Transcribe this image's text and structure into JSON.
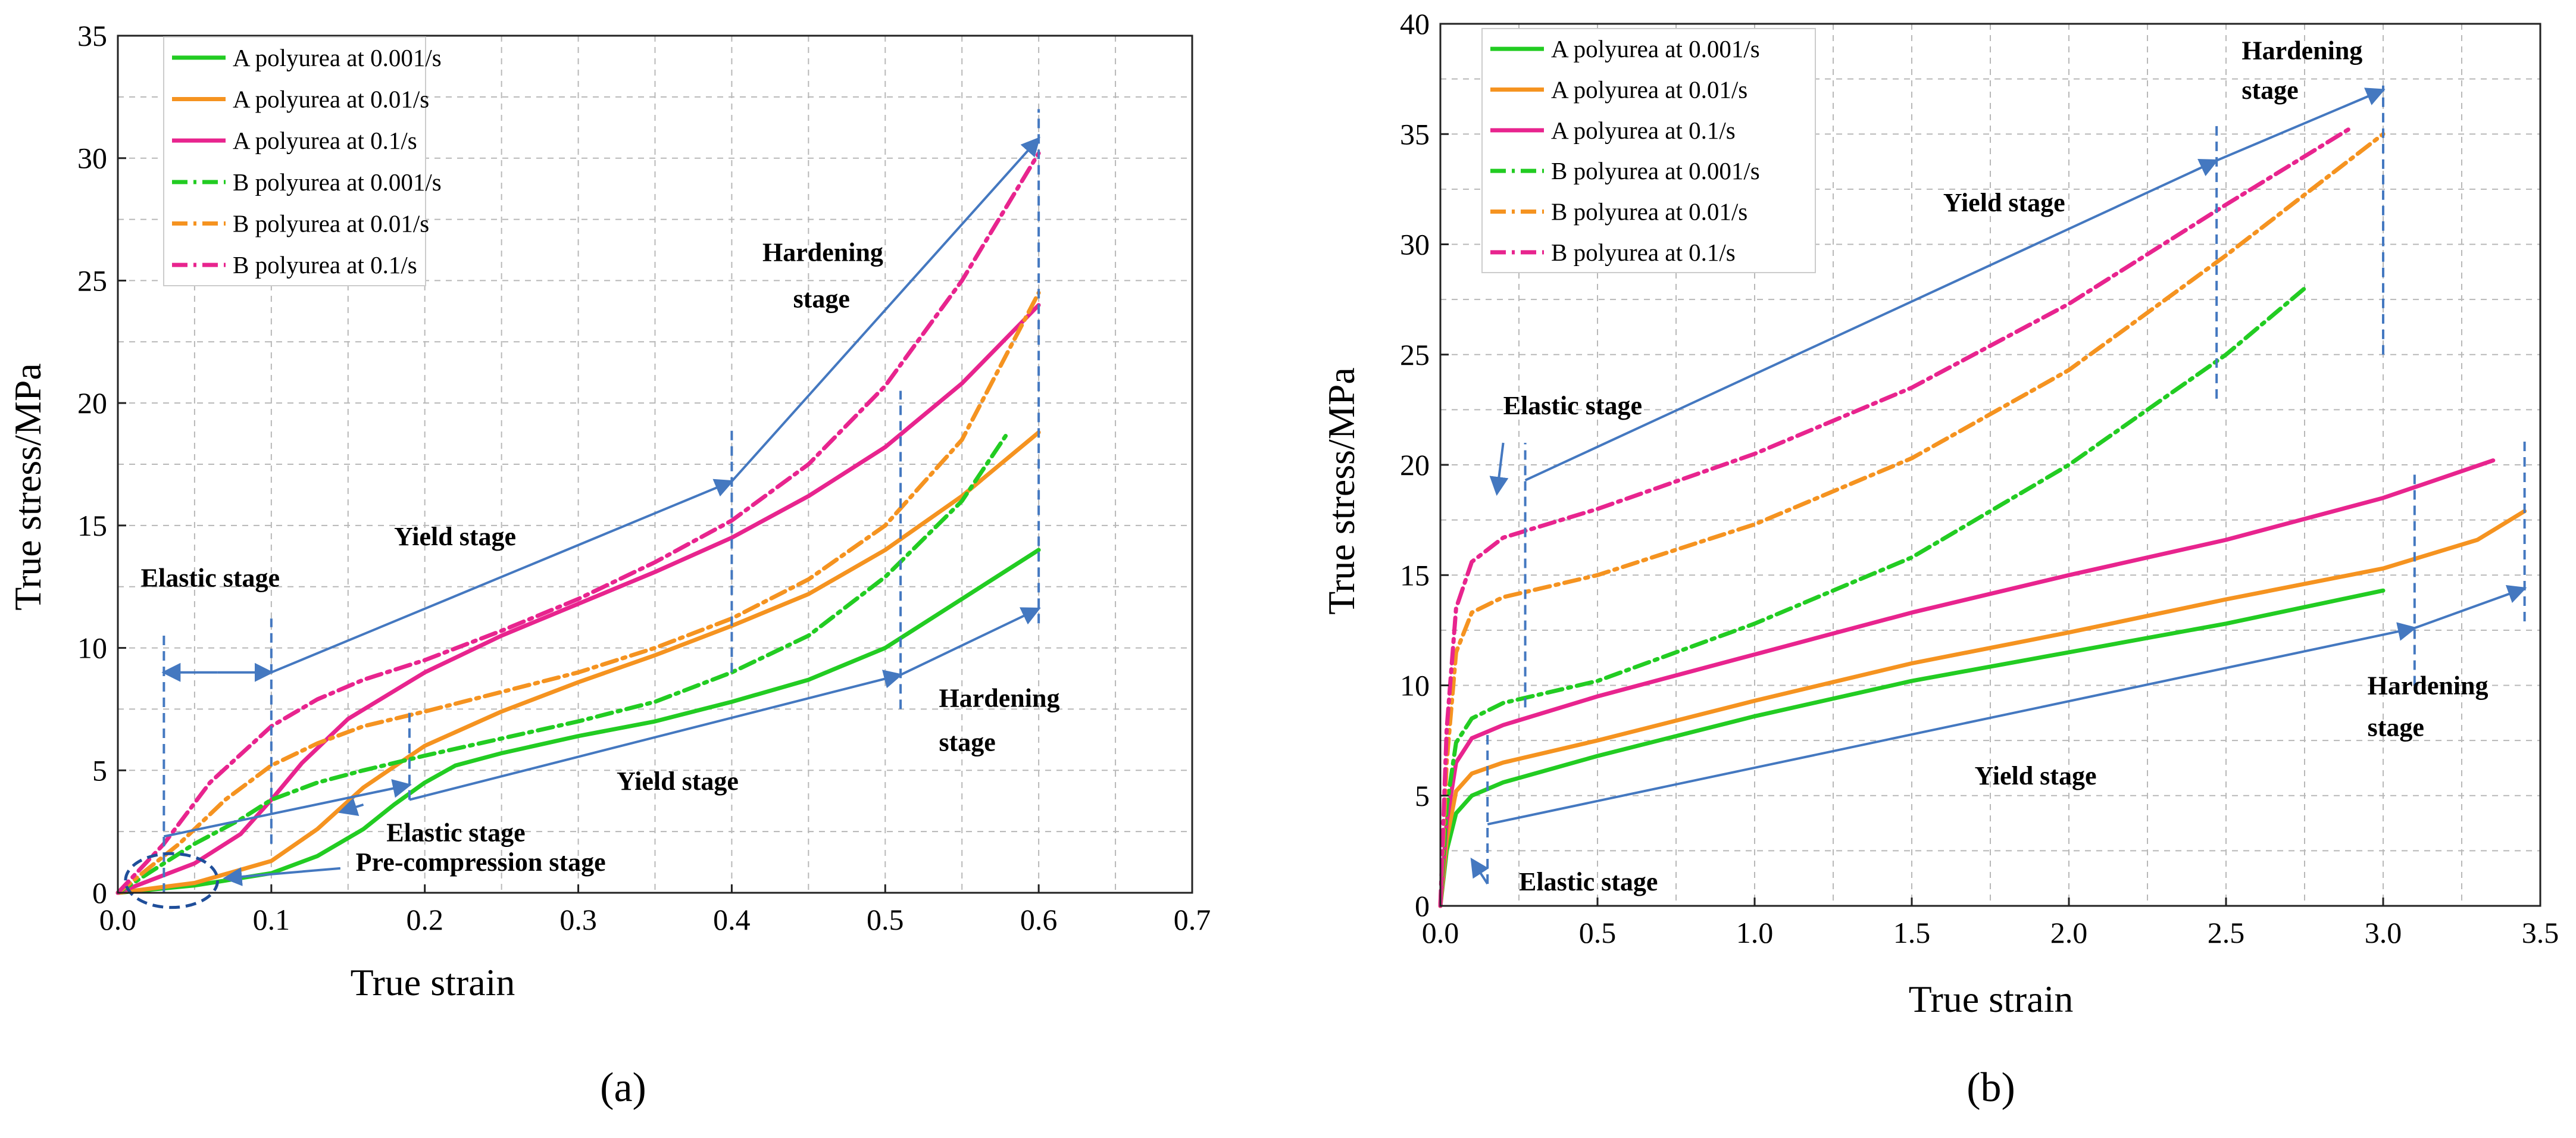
{
  "colors": {
    "green": "#22cc22",
    "orange": "#f59320",
    "magenta": "#e8248e",
    "arrow": "#4478c0",
    "guide": "#4478c0",
    "grid": "#b8b8b8"
  },
  "chart_data": [
    {
      "type": "line",
      "caption": "(a)",
      "xlabel": "True strain",
      "ylabel": "True stress/MPa",
      "xlim": [
        0,
        0.7
      ],
      "ylim": [
        0,
        35
      ],
      "xticks": [
        0,
        0.1,
        0.2,
        0.3,
        0.4,
        0.5,
        0.6,
        0.7
      ],
      "yticks": [
        0,
        5,
        10,
        15,
        20,
        25,
        30,
        35
      ],
      "xtick_labels": [
        "0.0",
        "0.1",
        "0.2",
        "0.3",
        "0.4",
        "0.5",
        "0.6",
        "0.7"
      ],
      "ytick_labels": [
        "0",
        "5",
        "10",
        "15",
        "20",
        "25",
        "30",
        "35"
      ],
      "grid": true,
      "legend_position": "top-left",
      "series": [
        {
          "name": "A polyurea at 0.001/s",
          "color": "green",
          "style": "solid",
          "x": [
            0,
            0.05,
            0.1,
            0.13,
            0.16,
            0.18,
            0.2,
            0.22,
            0.25,
            0.3,
            0.35,
            0.4,
            0.45,
            0.5,
            0.55,
            0.6
          ],
          "y": [
            0,
            0.3,
            0.8,
            1.5,
            2.6,
            3.6,
            4.5,
            5.2,
            5.7,
            6.4,
            7.0,
            7.8,
            8.7,
            10.0,
            12.0,
            14.0
          ]
        },
        {
          "name": "A polyurea at 0.01/s",
          "color": "orange",
          "style": "solid",
          "x": [
            0,
            0.05,
            0.1,
            0.13,
            0.16,
            0.2,
            0.25,
            0.3,
            0.35,
            0.4,
            0.45,
            0.5,
            0.55,
            0.6
          ],
          "y": [
            0,
            0.4,
            1.3,
            2.6,
            4.3,
            6.0,
            7.4,
            8.6,
            9.7,
            10.9,
            12.2,
            14.0,
            16.2,
            18.8
          ]
        },
        {
          "name": "A polyurea at 0.1/s",
          "color": "magenta",
          "style": "solid",
          "x": [
            0,
            0.05,
            0.08,
            0.1,
            0.12,
            0.15,
            0.2,
            0.25,
            0.3,
            0.35,
            0.4,
            0.45,
            0.5,
            0.55,
            0.6
          ],
          "y": [
            0,
            1.2,
            2.4,
            3.8,
            5.3,
            7.1,
            9.0,
            10.5,
            11.8,
            13.1,
            14.5,
            16.2,
            18.2,
            20.8,
            24.0
          ]
        },
        {
          "name": "B polyurea at 0.001/s",
          "color": "green",
          "style": "dashdot",
          "x": [
            0,
            0.05,
            0.08,
            0.1,
            0.13,
            0.16,
            0.2,
            0.25,
            0.3,
            0.35,
            0.4,
            0.45,
            0.5,
            0.55,
            0.58
          ],
          "y": [
            0,
            2.0,
            3.0,
            3.8,
            4.5,
            5.0,
            5.6,
            6.3,
            7.0,
            7.8,
            9.0,
            10.5,
            12.9,
            16.0,
            18.8
          ]
        },
        {
          "name": "B polyurea at 0.01/s",
          "color": "orange",
          "style": "dashdot",
          "x": [
            0,
            0.04,
            0.07,
            0.1,
            0.13,
            0.16,
            0.2,
            0.25,
            0.3,
            0.35,
            0.4,
            0.45,
            0.5,
            0.55,
            0.6
          ],
          "y": [
            0,
            2.0,
            3.8,
            5.2,
            6.1,
            6.8,
            7.4,
            8.2,
            9.0,
            10.0,
            11.2,
            12.8,
            15.0,
            18.5,
            24.5
          ]
        },
        {
          "name": "B polyurea at 0.1/s",
          "color": "magenta",
          "style": "dashdot",
          "x": [
            0,
            0.03,
            0.06,
            0.1,
            0.13,
            0.16,
            0.2,
            0.25,
            0.3,
            0.35,
            0.4,
            0.45,
            0.5,
            0.55,
            0.6
          ],
          "y": [
            0,
            2.0,
            4.5,
            6.8,
            7.9,
            8.7,
            9.5,
            10.7,
            12.0,
            13.5,
            15.2,
            17.5,
            20.7,
            25.0,
            30.2
          ]
        }
      ],
      "annotations": [
        {
          "text": "Elastic stage",
          "x": 0.015,
          "y": 12.5
        },
        {
          "text": "Yield stage",
          "x": 0.18,
          "y": 14.2
        },
        {
          "text": "Hardening",
          "x": 0.42,
          "y": 25.8
        },
        {
          "text": "stage",
          "x": 0.44,
          "y": 23.9
        },
        {
          "text": "Hardening",
          "x": 0.535,
          "y": 7.6
        },
        {
          "text": "stage",
          "x": 0.535,
          "y": 5.8
        },
        {
          "text": "Yield stage",
          "x": 0.325,
          "y": 4.2
        },
        {
          "text": "Elastic stage",
          "x": 0.175,
          "y": 2.1
        },
        {
          "text": "Pre-compression stage",
          "x": 0.155,
          "y": 0.9
        }
      ],
      "guides": [
        {
          "x": 0.03,
          "y0": 0,
          "y1": 10.7
        },
        {
          "x": 0.1,
          "y0": 2.0,
          "y1": 11.2
        },
        {
          "x": 0.19,
          "y0": 3.8,
          "y1": 7.6
        },
        {
          "x": 0.4,
          "y0": 9.0,
          "y1": 19.0
        },
        {
          "x": 0.51,
          "y0": 7.5,
          "y1": 20.5
        },
        {
          "x": 0.6,
          "y0": 11.0,
          "y1": 32.0
        }
      ],
      "arrows": [
        {
          "from": [
            0.065,
            9.0
          ],
          "to": [
            0.03,
            9.0
          ]
        },
        {
          "from": [
            0.065,
            9.0
          ],
          "to": [
            0.1,
            9.0
          ]
        },
        {
          "from": [
            0.1,
            9.0
          ],
          "to": [
            0.4,
            16.8
          ]
        },
        {
          "from": [
            0.4,
            16.8
          ],
          "to": [
            0.6,
            30.8
          ]
        },
        {
          "from": [
            0.03,
            2.3
          ],
          "to": [
            0.19,
            4.4
          ]
        },
        {
          "from": [
            0.16,
            3.6
          ],
          "to": [
            0.145,
            3.3
          ]
        },
        {
          "from": [
            0.19,
            3.8
          ],
          "to": [
            0.51,
            8.9
          ]
        },
        {
          "from": [
            0.51,
            8.9
          ],
          "to": [
            0.6,
            11.6
          ]
        },
        {
          "from": [
            0.145,
            1.0
          ],
          "to": [
            0.07,
            0.6
          ]
        }
      ],
      "ellipse": {
        "cx": 0.035,
        "cy": 0.5,
        "rx": 0.03,
        "ry": 1.1
      }
    },
    {
      "type": "line",
      "caption": "(b)",
      "xlabel": "True strain",
      "ylabel": "True stress/MPa",
      "xlim": [
        0,
        3.5
      ],
      "ylim": [
        0,
        40
      ],
      "xticks": [
        0,
        0.5,
        1.0,
        1.5,
        2.0,
        2.5,
        3.0,
        3.5
      ],
      "yticks": [
        0,
        5,
        10,
        15,
        20,
        25,
        30,
        35,
        40
      ],
      "xtick_labels": [
        "0.0",
        "0.5",
        "1.0",
        "1.5",
        "2.0",
        "2.5",
        "3.0",
        "3.5"
      ],
      "ytick_labels": [
        "0",
        "5",
        "10",
        "15",
        "20",
        "25",
        "30",
        "35",
        "40"
      ],
      "grid": true,
      "legend_position": "top-left",
      "series": [
        {
          "name": "A polyurea at 0.001/s",
          "color": "green",
          "style": "solid",
          "x": [
            0,
            0.02,
            0.05,
            0.1,
            0.2,
            0.5,
            1.0,
            1.5,
            2.0,
            2.5,
            3.0
          ],
          "y": [
            0,
            2.5,
            4.2,
            5.0,
            5.6,
            6.8,
            8.6,
            10.2,
            11.5,
            12.8,
            14.3
          ]
        },
        {
          "name": "A polyurea at 0.01/s",
          "color": "orange",
          "style": "solid",
          "x": [
            0,
            0.02,
            0.05,
            0.1,
            0.2,
            0.5,
            1.0,
            1.5,
            2.0,
            2.5,
            3.0,
            3.3,
            3.45
          ],
          "y": [
            0,
            3.0,
            5.2,
            6.0,
            6.5,
            7.5,
            9.3,
            11.0,
            12.4,
            13.9,
            15.3,
            16.6,
            17.9
          ]
        },
        {
          "name": "A polyurea at 0.1/s",
          "color": "magenta",
          "style": "solid",
          "x": [
            0,
            0.02,
            0.05,
            0.1,
            0.2,
            0.5,
            1.0,
            1.5,
            2.0,
            2.5,
            3.0,
            3.35
          ],
          "y": [
            0,
            3.8,
            6.5,
            7.6,
            8.2,
            9.5,
            11.4,
            13.3,
            15.0,
            16.6,
            18.5,
            20.2
          ]
        },
        {
          "name": "B polyurea at 0.001/s",
          "color": "green",
          "style": "dashdot",
          "x": [
            0,
            0.02,
            0.05,
            0.1,
            0.2,
            0.5,
            1.0,
            1.5,
            2.0,
            2.5,
            2.75
          ],
          "y": [
            0,
            4.5,
            7.4,
            8.5,
            9.2,
            10.2,
            12.8,
            15.8,
            20.0,
            25.0,
            28.0
          ]
        },
        {
          "name": "B polyurea at 0.01/s",
          "color": "orange",
          "style": "dashdot",
          "x": [
            0,
            0.02,
            0.05,
            0.1,
            0.2,
            0.5,
            1.0,
            1.5,
            2.0,
            2.5,
            3.0
          ],
          "y": [
            0,
            6.5,
            11.5,
            13.3,
            14.0,
            15.0,
            17.3,
            20.3,
            24.3,
            29.5,
            35.0
          ]
        },
        {
          "name": "B polyurea at 0.1/s",
          "color": "magenta",
          "style": "dashdot",
          "x": [
            0,
            0.02,
            0.05,
            0.1,
            0.2,
            0.5,
            1.0,
            1.5,
            2.0,
            2.5,
            2.9
          ],
          "y": [
            0,
            8.0,
            13.5,
            15.6,
            16.7,
            18.0,
            20.5,
            23.5,
            27.3,
            31.8,
            35.3
          ]
        }
      ],
      "annotations": [
        {
          "text": "Elastic stage",
          "x": 0.2,
          "y": 22.3
        },
        {
          "text": "Yield stage",
          "x": 1.6,
          "y": 31.5
        },
        {
          "text": "Hardening",
          "x": 2.55,
          "y": 38.4
        },
        {
          "text": "stage",
          "x": 2.55,
          "y": 36.6
        },
        {
          "text": "Hardening",
          "x": 2.95,
          "y": 9.6
        },
        {
          "text": "stage",
          "x": 2.95,
          "y": 7.7
        },
        {
          "text": "Yield stage",
          "x": 1.7,
          "y": 5.5
        },
        {
          "text": "Elastic stage",
          "x": 0.25,
          "y": 0.7
        }
      ],
      "guides": [
        {
          "x": 0.27,
          "y0": 9.0,
          "y1": 21.0
        },
        {
          "x": 2.47,
          "y0": 23.0,
          "y1": 35.5
        },
        {
          "x": 3.0,
          "y0": 25.0,
          "y1": 37.2
        },
        {
          "x": 0.15,
          "y0": 1.0,
          "y1": 8.0
        },
        {
          "x": 3.1,
          "y0": 10.0,
          "y1": 19.6
        },
        {
          "x": 3.45,
          "y0": 12.9,
          "y1": 21.1
        }
      ],
      "arrows": [
        {
          "from": [
            0.27,
            19.3
          ],
          "to": [
            2.47,
            33.8
          ]
        },
        {
          "from": [
            2.47,
            33.8
          ],
          "to": [
            3.0,
            37.0
          ]
        },
        {
          "from": [
            0.2,
            21.0
          ],
          "to": [
            0.18,
            18.7
          ]
        },
        {
          "from": [
            0.15,
            3.7
          ],
          "to": [
            3.1,
            12.6
          ]
        },
        {
          "from": [
            3.1,
            12.6
          ],
          "to": [
            3.45,
            14.4
          ]
        },
        {
          "from": [
            0.15,
            1.0
          ],
          "to": [
            0.1,
            2.1
          ]
        }
      ]
    }
  ]
}
